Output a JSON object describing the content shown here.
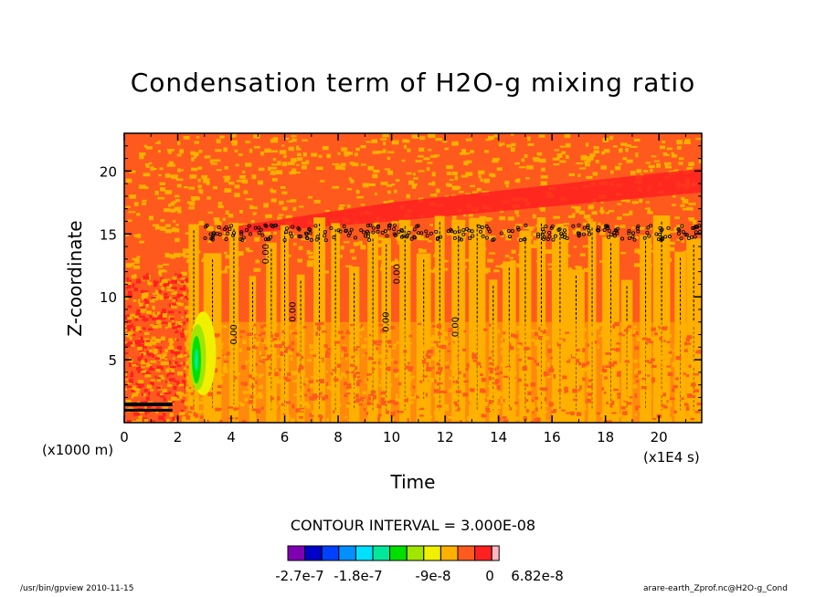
{
  "chart_data": {
    "type": "heatmap",
    "title": "Condensation term of H2O-g mixing ratio",
    "xlabel": "Time",
    "ylabel": "Z-coordinate",
    "x_unit": "(x1E4 s)",
    "y_unit": "(x1000 m)",
    "xlim": [
      0,
      21.6
    ],
    "ylim": [
      0,
      23
    ],
    "x_ticks": [
      0,
      2,
      4,
      6,
      8,
      10,
      12,
      14,
      16,
      18,
      20
    ],
    "y_ticks": [
      5,
      10,
      15,
      20
    ],
    "contour_interval_text": "CONTOUR INTERVAL = 3.000E-08",
    "contour_line_label": "0.00",
    "colorbar": {
      "colors": [
        "#7f00b2",
        "#0000c8",
        "#0040ff",
        "#0090ff",
        "#00e0ff",
        "#00e89a",
        "#00e000",
        "#a0e600",
        "#f0f000",
        "#ffb000",
        "#ff5a1e",
        "#ff2020",
        "#ffb6c1"
      ],
      "tick_labels": [
        "-2.7e-7",
        "-1.8e-7",
        "-9e-8",
        "0",
        "6.82e-8"
      ]
    },
    "regions": [
      {
        "name": "background",
        "value": "near 0",
        "color": "#ff5a1e"
      },
      {
        "name": "convective columns",
        "x_range": [
          2.3,
          21.6
        ],
        "z_range": [
          0,
          17
        ],
        "color": "#ffb000"
      },
      {
        "name": "minimum",
        "x_range": [
          2.4,
          3.2
        ],
        "z_range": [
          2,
          9
        ],
        "color": "#00e000"
      }
    ]
  },
  "footer": {
    "left": "/usr/bin/gpview  2010-11-15",
    "right": "arare-earth_Zprof.nc@H2O-g_Cond"
  }
}
